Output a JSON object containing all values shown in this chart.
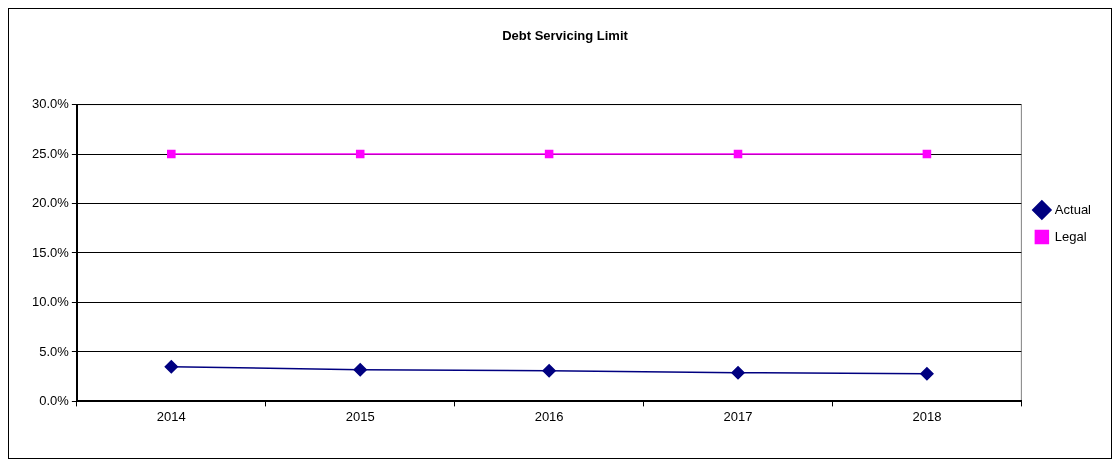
{
  "chart_data": {
    "type": "line",
    "title": "Debt Servicing Limit",
    "categories": [
      "2014",
      "2015",
      "2016",
      "2017",
      "2018"
    ],
    "series": [
      {
        "name": "Actual",
        "color": "#000080",
        "values": [
          3.5,
          3.2,
          3.1,
          2.9,
          2.8
        ],
        "marker": "diamond"
      },
      {
        "name": "Legal",
        "color": "#ff00ff",
        "values": [
          25,
          25,
          25,
          25,
          25
        ],
        "marker": "square"
      }
    ],
    "ylim": [
      0,
      30
    ],
    "yticks": [
      {
        "value": 0,
        "label": "0.0%"
      },
      {
        "value": 5,
        "label": "5.0%"
      },
      {
        "value": 10,
        "label": "10.0%"
      },
      {
        "value": 15,
        "label": "15.0%"
      },
      {
        "value": 20,
        "label": "20.0%"
      },
      {
        "value": 25,
        "label": "25.0%"
      },
      {
        "value": 30,
        "label": "30.0%"
      }
    ],
    "grid": "y",
    "legend": "right",
    "line_style": "solid"
  }
}
